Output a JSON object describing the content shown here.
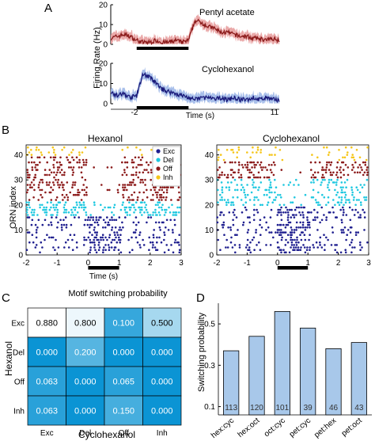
{
  "panels": {
    "A": "A",
    "B": "B",
    "C": "C",
    "D": "D"
  },
  "colors": {
    "pentyl_line": "#8b1a1a",
    "pentyl_band": "#e8a0a0",
    "cyclo_line": "#1a1a7a",
    "cyclo_band": "#9fb8e8",
    "exc": "#1f1f8f",
    "del": "#1fc8e0",
    "off": "#8b1a1a",
    "inh": "#f5c518",
    "heat_high": "#ffffff",
    "heat_low": "#0b94d4",
    "bar_fill": "#a8c8ea",
    "stim_bar": "#000000"
  },
  "chart_data": [
    {
      "id": "A",
      "type": "line",
      "ylabel": "Firing Rate (Hz)",
      "xlabel": "Time (s)",
      "xlim": [
        -2,
        11
      ],
      "x_ticks": [
        "-2",
        "11"
      ],
      "stimulus": [
        0,
        4
      ],
      "subplots": [
        {
          "name": "Pentyl acetate",
          "ylim": [
            0,
            20
          ],
          "y_ticks": [
            "0",
            "10",
            "20"
          ],
          "series": [
            {
              "x": [
                -2.0,
                -1.5,
                -1.0,
                -0.5,
                0.0,
                0.5,
                1.0,
                1.5,
                2.0,
                2.5,
                3.0,
                3.5,
                4.0,
                4.5,
                5.0,
                5.5,
                6.0,
                6.5,
                7.0,
                7.5,
                8.0,
                8.5,
                9.0,
                9.5,
                10.0,
                10.5,
                11.0
              ],
              "y": [
                3,
                4,
                5,
                4,
                2,
                1,
                1,
                2,
                1,
                1,
                2,
                1,
                2,
                12,
                11,
                9,
                8,
                6,
                6,
                5,
                4,
                4,
                3,
                3,
                2,
                3,
                2
              ]
            }
          ]
        },
        {
          "name": "Cyclohexanol",
          "ylim": [
            0,
            20
          ],
          "y_ticks": [
            "0",
            "10",
            "20"
          ],
          "series": [
            {
              "x": [
                -2.0,
                -1.5,
                -1.0,
                -0.5,
                0.0,
                0.5,
                1.0,
                1.5,
                2.0,
                2.5,
                3.0,
                3.5,
                4.0,
                4.5,
                5.0,
                5.5,
                6.0,
                6.5,
                7.0,
                7.5,
                8.0,
                8.5,
                9.0,
                9.5,
                10.0,
                10.5,
                11.0
              ],
              "y": [
                6,
                4,
                5,
                3,
                4,
                15,
                13,
                10,
                7,
                6,
                5,
                4,
                3,
                2,
                3,
                3,
                2,
                3,
                2,
                3,
                2,
                2,
                3,
                2,
                3,
                2,
                2
              ]
            }
          ]
        }
      ]
    },
    {
      "id": "B",
      "type": "scatter",
      "ylabel": "ORN index",
      "xlabel": "Time (s)",
      "xlim": [
        -2,
        3
      ],
      "ylim": [
        0,
        44
      ],
      "x_ticks": [
        "-2",
        "-1",
        "0",
        "1",
        "2",
        "3"
      ],
      "y_ticks": [
        "0",
        "10",
        "20",
        "30",
        "40"
      ],
      "stimulus": [
        0,
        1
      ],
      "legend": [
        "Exc",
        "Del",
        "Off",
        "Inh"
      ],
      "legend_position": "top-right",
      "subplots": [
        {
          "name": "Hexanol",
          "groups": [
            {
              "label": "Exc",
              "rows": [
                1,
                15
              ],
              "baseline_rate": 0.3,
              "stim_rate": 0.85
            },
            {
              "label": "Del",
              "rows": [
                16,
                21
              ],
              "baseline_rate": 0.8,
              "stim_rate": 0.15
            },
            {
              "label": "Off",
              "rows": [
                22,
                39
              ],
              "baseline_rate": 0.6,
              "stim_rate": 0.05
            },
            {
              "label": "Inh",
              "rows": [
                40,
                43
              ],
              "baseline_rate": 0.35,
              "stim_rate": 0.05
            }
          ]
        },
        {
          "name": "Cyclohexanol",
          "groups": [
            {
              "label": "Exc",
              "rows": [
                1,
                19
              ],
              "baseline_rate": 0.28,
              "stim_rate": 0.85
            },
            {
              "label": "Del",
              "rows": [
                20,
                30
              ],
              "baseline_rate": 0.5,
              "stim_rate": 0.2
            },
            {
              "label": "Off",
              "rows": [
                31,
                37
              ],
              "baseline_rate": 0.55,
              "stim_rate": 0.1
            },
            {
              "label": "Inh",
              "rows": [
                38,
                43
              ],
              "baseline_rate": 0.3,
              "stim_rate": 0.05
            }
          ]
        }
      ]
    },
    {
      "id": "C",
      "type": "heatmap",
      "title": "Motif switching probability",
      "xlabel": "Cyclohexanol",
      "ylabel": "Hexanol",
      "x_categories": [
        "Exc",
        "Del",
        "Off",
        "Inh"
      ],
      "y_categories": [
        "Exc",
        "Del",
        "Off",
        "Inh"
      ],
      "values": [
        [
          0.88,
          0.8,
          0.1,
          0.5
        ],
        [
          0.0,
          0.2,
          0.0,
          0.0
        ],
        [
          0.063,
          0.0,
          0.065,
          0.0
        ],
        [
          0.063,
          0.0,
          0.15,
          0.0
        ]
      ],
      "value_labels": [
        [
          "0.880",
          "0.800",
          "0.100",
          "0.500"
        ],
        [
          "0.000",
          "0.200",
          "0.000",
          "0.000"
        ],
        [
          "0.063",
          "0.000",
          "0.065",
          "0.000"
        ],
        [
          "0.063",
          "0.000",
          "0.150",
          "0.000"
        ]
      ]
    },
    {
      "id": "D",
      "type": "bar",
      "ylabel": "Switching probability",
      "categories": [
        "hex:cyc",
        "hex:oct",
        "oct:cyc",
        "pet:cyc",
        "pet:hex",
        "pet:oct"
      ],
      "values": [
        0.37,
        0.44,
        0.56,
        0.48,
        0.38,
        0.41
      ],
      "counts": [
        "113",
        "120",
        "101",
        "39",
        "46",
        "43"
      ],
      "ylim": [
        0.06,
        0.6
      ],
      "y_ticks": [
        {
          "value": 0.1,
          "label": "0.1"
        },
        {
          "value": 0.3,
          "label": "0.3"
        },
        {
          "value": 0.5,
          "label": "0.5"
        }
      ]
    }
  ]
}
